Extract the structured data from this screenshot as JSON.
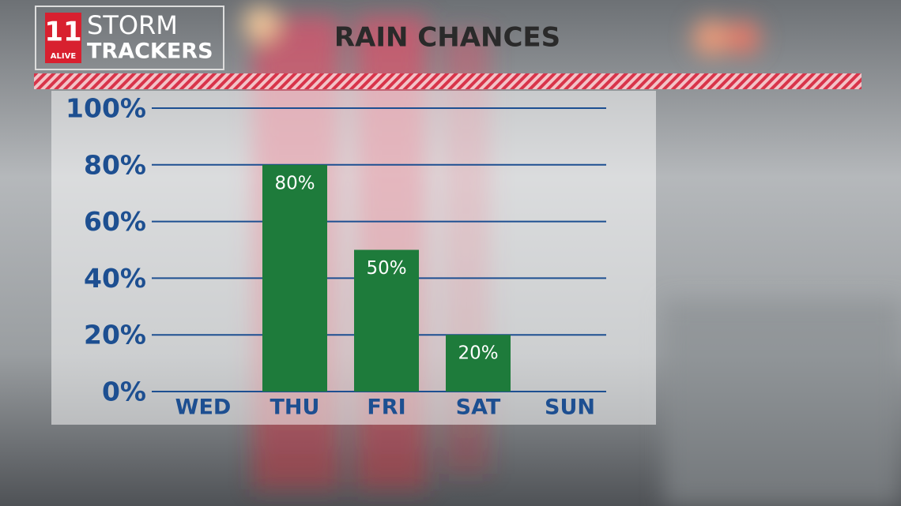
{
  "chart_data": {
    "type": "bar",
    "title": "RAIN CHANCES",
    "logo": {
      "number": "11",
      "brand": "ALIVE",
      "line1": "STORM",
      "line2": "TRACKERS"
    },
    "categories": [
      "WED",
      "THU",
      "FRI",
      "SAT",
      "SUN"
    ],
    "values": [
      null,
      80,
      50,
      20,
      null
    ],
    "value_labels": [
      null,
      "80%",
      "50%",
      "20%",
      null
    ],
    "color": "#1e7b3b",
    "ylim": [
      0,
      100
    ],
    "yticks": [
      {
        "value": 0,
        "label": "0%"
      },
      {
        "value": 20,
        "label": "20%"
      },
      {
        "value": 40,
        "label": "40%"
      },
      {
        "value": 60,
        "label": "60%"
      },
      {
        "value": 80,
        "label": "80%"
      },
      {
        "value": 100,
        "label": "100%"
      }
    ],
    "grid": true
  }
}
